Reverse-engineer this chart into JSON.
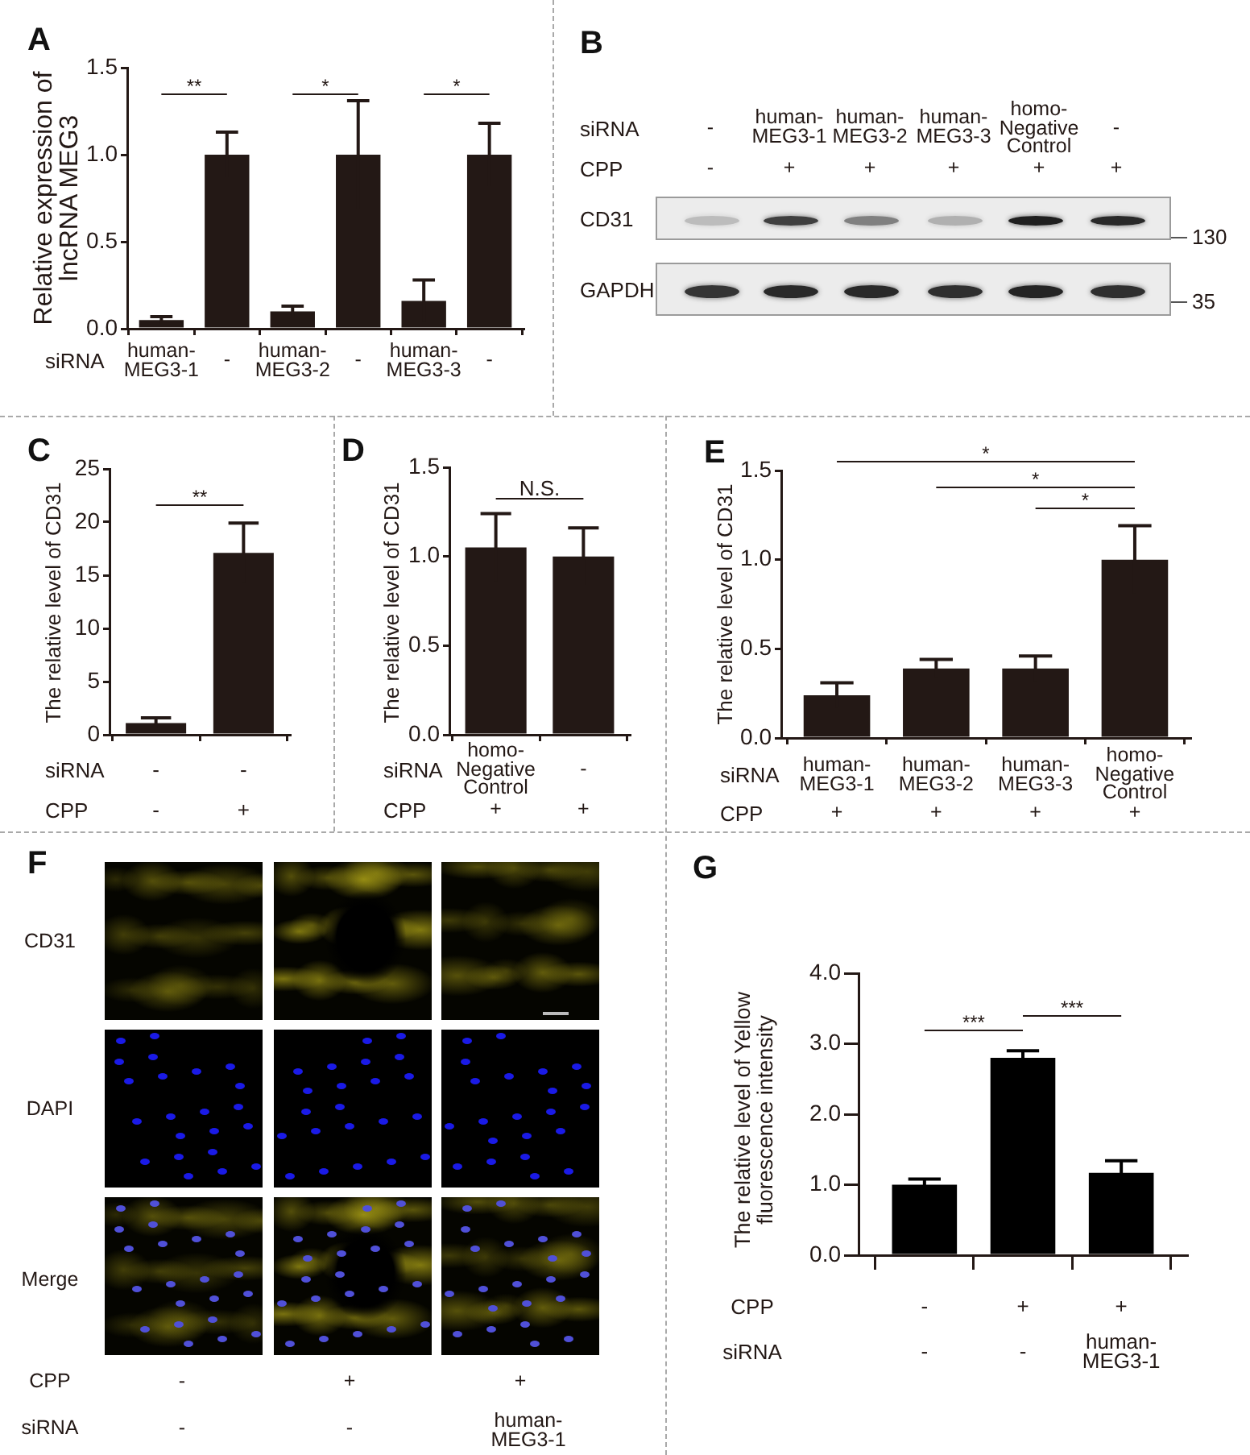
{
  "chart_data": [
    {
      "type": "bar",
      "title": "A",
      "ylabel": "Relative expression of lncRNA MEG3",
      "xlabel": "siRNA",
      "categories": [
        "human-MEG3-1",
        "-",
        "human-MEG3-2",
        "-",
        "human-MEG3-3",
        "-"
      ],
      "values": [
        0.05,
        1.0,
        0.1,
        1.0,
        0.16,
        1.0
      ],
      "errors": [
        0.02,
        0.13,
        0.03,
        0.31,
        0.12,
        0.18
      ],
      "color": "#231815",
      "ylim": [
        0,
        1.5
      ],
      "yticks": [
        {
          "value": 0,
          "label": "0.0"
        },
        0.5,
        {
          "value": 1,
          "label": "1.0"
        },
        1.5
      ],
      "annotations": [
        "**",
        "*",
        "*"
      ]
    },
    {
      "type": "other",
      "title": "B",
      "annotations": [
        "siRNA",
        "-",
        "human-MEG3-1",
        "human-MEG3-2",
        "human-MEG3-3",
        "homo-Negative Control",
        "-",
        "CPP",
        "-",
        "+",
        "+",
        "+",
        "+",
        "+",
        "CD31",
        "130",
        "GAPDH",
        "35"
      ]
    },
    {
      "type": "bar",
      "title": "C",
      "ylabel": "The relative level of CD31",
      "xlabel": "siRNA",
      "categories": [
        "-",
        "-"
      ],
      "values": [
        1.1,
        17.1
      ],
      "errors": [
        0.5,
        2.8
      ],
      "color": "#231815",
      "ylim": [
        0,
        25
      ],
      "yticks": [
        0,
        5,
        10,
        15,
        20,
        25
      ],
      "annotations": [
        "**",
        "CPP",
        "-",
        "+"
      ]
    },
    {
      "type": "bar",
      "title": "D",
      "ylabel": "The relative level of CD31",
      "xlabel": "siRNA",
      "categories": [
        "homo-Negative Control",
        "-"
      ],
      "values": [
        1.05,
        1.0
      ],
      "errors": [
        0.19,
        0.16
      ],
      "color": "#231815",
      "ylim": [
        0,
        1.5
      ],
      "yticks": [
        {
          "value": 0,
          "label": "0.0"
        },
        0.5,
        {
          "value": 1,
          "label": "1.0"
        },
        1.5
      ],
      "annotations": [
        "N.S.",
        "CPP",
        "+",
        "+"
      ]
    },
    {
      "type": "bar",
      "title": "E",
      "ylabel": "The relative level of CD31",
      "xlabel": "siRNA",
      "categories": [
        "human-MEG3-1",
        "human-MEG3-2",
        "human-MEG3-3",
        "homo-Negative Control"
      ],
      "values": [
        0.24,
        0.39,
        0.39,
        1.0
      ],
      "errors": [
        0.07,
        0.05,
        0.07,
        0.19
      ],
      "color": "#231815",
      "ylim": [
        0,
        1.5
      ],
      "yticks": [
        {
          "value": 0,
          "label": "0.0"
        },
        0.5,
        {
          "value": 1,
          "label": "1.0"
        },
        1.5
      ],
      "annotations": [
        "*",
        "*",
        "*",
        "CPP",
        "+",
        "+",
        "+",
        "+"
      ]
    },
    {
      "type": "other",
      "title": "F",
      "annotations": [
        "CD31",
        "DAPI",
        "Merge",
        "CPP",
        "-",
        "+",
        "+",
        "siRNA",
        "-",
        "-",
        "human-MEG3-1"
      ]
    },
    {
      "type": "bar",
      "title": "G",
      "ylabel": "The relative level of Yellow fluorescence intensity",
      "xlabel": "CPP",
      "categories": [
        "-",
        "+",
        "+"
      ],
      "values": [
        1.0,
        2.8,
        1.17
      ],
      "errors": [
        0.08,
        0.1,
        0.17
      ],
      "color": "#000000",
      "ylim": [
        0,
        4
      ],
      "yticks": [
        {
          "value": 0,
          "label": "0.0"
        },
        {
          "value": 1,
          "label": "1.0"
        },
        {
          "value": 2,
          "label": "2.0"
        },
        {
          "value": 3,
          "label": "3.0"
        },
        {
          "value": 4,
          "label": "4.0"
        }
      ],
      "annotations": [
        "***",
        "***",
        "siRNA",
        "-",
        "-",
        "human-MEG3-1"
      ]
    }
  ]
}
